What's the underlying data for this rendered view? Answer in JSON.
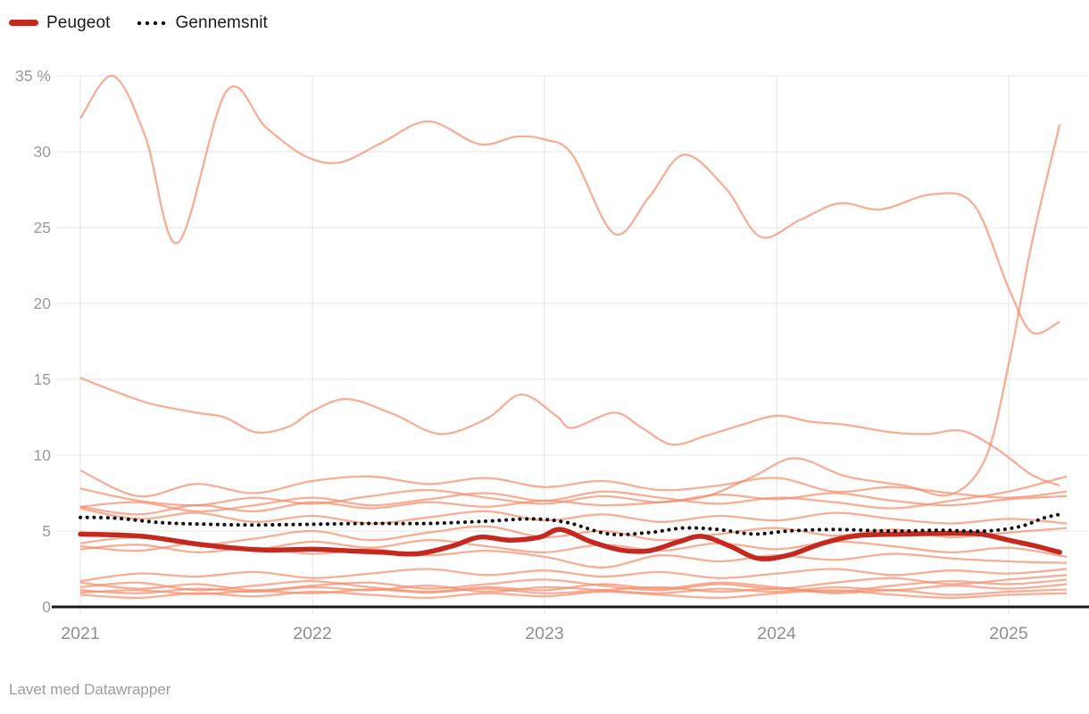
{
  "legend": {
    "items": [
      {
        "label": "Peugeot",
        "color": "#c4281e",
        "style": "solid"
      },
      {
        "label": "Gennemsnit",
        "color": "#111111",
        "style": "dotted"
      }
    ]
  },
  "footer": {
    "attribution": "Lavet med Datawrapper"
  },
  "chart_data": {
    "type": "line",
    "title": "",
    "xlabel": "",
    "ylabel": "",
    "grid": true,
    "legend_position": "top-left",
    "x_axis": {
      "tick_labels": [
        "2021",
        "2022",
        "2023",
        "2024",
        "2025"
      ],
      "tick_values": [
        2021,
        2022,
        2023,
        2024,
        2025
      ],
      "range": [
        2021,
        2025.3
      ]
    },
    "y_axis": {
      "tick_labels": [
        "0",
        "5",
        "10",
        "15",
        "20",
        "25",
        "30",
        "35 %"
      ],
      "tick_values": [
        0,
        5,
        10,
        15,
        20,
        25,
        30,
        35
      ],
      "range": [
        0,
        35
      ],
      "unit": "%"
    },
    "colors": {
      "background_lines": "#f58e6c",
      "highlight": "#c4281e",
      "average": "#111111",
      "grid": "#e4e4e4",
      "axis": "#191919",
      "tick_label": "#9b9b9b"
    },
    "x_default": [
      2021.0,
      2021.25,
      2021.5,
      2021.75,
      2022.0,
      2022.25,
      2022.5,
      2022.75,
      2023.0,
      2023.25,
      2023.5,
      2023.75,
      2024.0,
      2024.25,
      2024.5,
      2024.75,
      2025.0,
      2025.25
    ],
    "series": [
      {
        "name": "other-1",
        "role": "background",
        "x": [
          2021.0,
          2021.14,
          2021.28,
          2021.42,
          2021.63,
          2021.8,
          2021.97,
          2022.12,
          2022.3,
          2022.5,
          2022.72,
          2022.88,
          2023.0,
          2023.12,
          2023.3,
          2023.45,
          2023.6,
          2023.78,
          2023.93,
          2024.1,
          2024.27,
          2024.45,
          2024.67,
          2024.85,
          2025.0,
          2025.1,
          2025.22
        ],
        "values": [
          32.2,
          35.0,
          31.0,
          24.0,
          34.0,
          31.6,
          29.7,
          29.3,
          30.6,
          32.0,
          30.5,
          31.0,
          30.8,
          29.8,
          24.6,
          27.0,
          29.8,
          27.6,
          24.4,
          25.5,
          26.6,
          26.2,
          27.2,
          26.5,
          21.0,
          18.1,
          18.8
        ]
      },
      {
        "name": "other-2",
        "role": "background",
        "x": [
          2021.0,
          2021.25,
          2021.5,
          2021.75,
          2022.0,
          2022.25,
          2022.5,
          2022.75,
          2023.0,
          2023.25,
          2023.5,
          2023.7,
          2023.9,
          2024.08,
          2024.3,
          2024.55,
          2024.75,
          2024.9,
          2025.0,
          2025.1,
          2025.22
        ],
        "values": [
          6.6,
          6.1,
          6.7,
          6.3,
          6.9,
          6.5,
          6.9,
          6.6,
          7.0,
          6.7,
          6.9,
          7.3,
          8.6,
          9.8,
          8.6,
          8.0,
          7.4,
          9.8,
          16.0,
          24.0,
          31.8
        ]
      },
      {
        "name": "other-3",
        "role": "background",
        "x": [
          2021.0,
          2021.15,
          2021.3,
          2021.5,
          2021.62,
          2021.76,
          2021.9,
          2022.0,
          2022.15,
          2022.35,
          2022.55,
          2022.75,
          2022.9,
          2023.05,
          2023.12,
          2023.3,
          2023.42,
          2023.55,
          2023.7,
          2023.85,
          2024.0,
          2024.15,
          2024.3,
          2024.5,
          2024.65,
          2024.8,
          2024.95,
          2025.1,
          2025.22
        ],
        "values": [
          15.1,
          14.2,
          13.4,
          12.8,
          12.5,
          11.5,
          11.9,
          12.9,
          13.7,
          12.7,
          11.4,
          12.4,
          14.0,
          12.6,
          11.8,
          12.8,
          11.8,
          10.7,
          11.3,
          12.0,
          12.6,
          12.2,
          12.0,
          11.5,
          11.4,
          11.6,
          10.4,
          8.7,
          8.0
        ]
      },
      {
        "name": "other-4",
        "role": "background",
        "values": [
          9.0,
          7.3,
          8.1,
          7.5,
          8.3,
          8.6,
          8.1,
          8.5,
          7.9,
          8.3,
          7.7,
          8.0,
          8.5,
          7.6,
          7.9,
          7.5,
          7.2,
          7.6
        ]
      },
      {
        "name": "other-5",
        "role": "background",
        "values": [
          7.8,
          7.0,
          6.7,
          7.2,
          6.8,
          7.3,
          7.7,
          7.2,
          6.8,
          7.3,
          6.9,
          7.4,
          7.1,
          7.5,
          7.0,
          6.7,
          7.1,
          7.3
        ]
      },
      {
        "name": "other-6",
        "role": "background",
        "values": [
          6.6,
          6.9,
          6.3,
          6.7,
          7.2,
          6.7,
          7.1,
          7.5,
          7.0,
          7.6,
          7.2,
          6.8,
          7.2,
          6.9,
          6.5,
          7.0,
          7.6,
          8.6
        ]
      },
      {
        "name": "other-7",
        "role": "background",
        "values": [
          6.5,
          5.8,
          6.2,
          5.6,
          6.0,
          5.5,
          5.9,
          6.3,
          5.7,
          6.1,
          5.6,
          6.0,
          5.7,
          6.2,
          5.8,
          5.5,
          5.8,
          5.5
        ]
      },
      {
        "name": "other-8",
        "role": "background",
        "values": [
          4.2,
          4.6,
          4.1,
          4.5,
          5.0,
          4.4,
          4.9,
          5.3,
          4.6,
          5.0,
          4.4,
          4.8,
          5.2,
          4.7,
          5.1,
          4.6,
          4.9,
          5.2
        ]
      },
      {
        "name": "other-9",
        "role": "background",
        "values": [
          4.0,
          3.7,
          4.2,
          3.8,
          4.3,
          3.9,
          4.4,
          4.0,
          3.6,
          4.1,
          3.7,
          4.2,
          3.8,
          4.3,
          4.0,
          3.6,
          3.9,
          3.3
        ]
      },
      {
        "name": "other-10",
        "role": "background",
        "values": [
          3.8,
          4.1,
          3.6,
          3.9,
          3.5,
          3.8,
          3.4,
          3.7,
          3.3,
          2.6,
          3.4,
          3.0,
          3.4,
          3.1,
          3.5,
          3.2,
          3.0,
          2.9
        ]
      },
      {
        "name": "other-11",
        "role": "background",
        "values": [
          1.7,
          2.2,
          2.0,
          2.3,
          1.9,
          2.2,
          2.5,
          2.1,
          2.4,
          2.0,
          2.3,
          1.9,
          2.2,
          2.5,
          2.1,
          2.4,
          2.2,
          2.5
        ]
      },
      {
        "name": "other-12",
        "role": "background",
        "values": [
          1.6,
          1.2,
          1.5,
          1.1,
          1.4,
          1.6,
          1.2,
          1.5,
          1.8,
          1.4,
          1.1,
          1.5,
          1.2,
          1.6,
          1.9,
          1.5,
          1.8,
          2.1
        ]
      },
      {
        "name": "other-13",
        "role": "background",
        "values": [
          1.3,
          1.6,
          1.1,
          1.4,
          1.7,
          1.3,
          1.0,
          1.3,
          1.1,
          1.5,
          1.2,
          1.6,
          1.3,
          1.0,
          1.4,
          1.7,
          1.5,
          1.8
        ]
      },
      {
        "name": "other-14",
        "role": "background",
        "values": [
          1.1,
          0.9,
          1.2,
          1.0,
          1.3,
          1.1,
          1.4,
          1.0,
          1.3,
          1.1,
          0.9,
          1.2,
          1.0,
          1.3,
          1.1,
          1.4,
          1.2,
          1.5
        ]
      },
      {
        "name": "other-15",
        "role": "background",
        "values": [
          0.95,
          1.1,
          0.85,
          1.05,
          0.9,
          1.15,
          0.95,
          1.2,
          0.9,
          1.1,
          1.3,
          1.0,
          1.2,
          0.9,
          1.1,
          0.8,
          1.0,
          1.15
        ]
      },
      {
        "name": "other-16",
        "role": "background",
        "values": [
          0.8,
          0.6,
          0.9,
          0.7,
          1.0,
          0.8,
          0.6,
          0.9,
          0.7,
          1.0,
          0.8,
          0.6,
          0.9,
          1.1,
          0.8,
          0.6,
          0.8,
          0.9
        ]
      },
      {
        "name": "Peugeot",
        "role": "highlight",
        "x": [
          2021.0,
          2021.15,
          2021.3,
          2021.5,
          2021.65,
          2021.8,
          2022.0,
          2022.15,
          2022.3,
          2022.45,
          2022.6,
          2022.72,
          2022.85,
          2022.98,
          2023.07,
          2023.2,
          2023.33,
          2023.45,
          2023.58,
          2023.68,
          2023.8,
          2023.92,
          2024.05,
          2024.2,
          2024.35,
          2024.55,
          2024.75,
          2024.88,
          2025.0,
          2025.12,
          2025.22
        ],
        "values": [
          4.8,
          4.75,
          4.6,
          4.15,
          3.9,
          3.75,
          3.8,
          3.7,
          3.6,
          3.5,
          4.0,
          4.6,
          4.4,
          4.6,
          5.1,
          4.3,
          3.75,
          3.7,
          4.3,
          4.65,
          4.0,
          3.2,
          3.4,
          4.2,
          4.7,
          4.8,
          4.85,
          4.8,
          4.4,
          4.0,
          3.6
        ]
      },
      {
        "name": "Gennemsnit",
        "role": "average",
        "x": [
          2021.0,
          2021.15,
          2021.35,
          2021.55,
          2021.75,
          2022.0,
          2022.25,
          2022.5,
          2022.75,
          2022.95,
          2023.1,
          2023.28,
          2023.45,
          2023.6,
          2023.75,
          2023.9,
          2024.05,
          2024.25,
          2024.5,
          2024.7,
          2024.9,
          2025.05,
          2025.15,
          2025.22
        ],
        "values": [
          5.9,
          5.85,
          5.55,
          5.45,
          5.4,
          5.45,
          5.5,
          5.5,
          5.65,
          5.8,
          5.55,
          4.8,
          4.9,
          5.2,
          5.1,
          4.8,
          5.0,
          5.1,
          5.0,
          5.05,
          5.0,
          5.3,
          5.85,
          6.1
        ]
      }
    ]
  }
}
